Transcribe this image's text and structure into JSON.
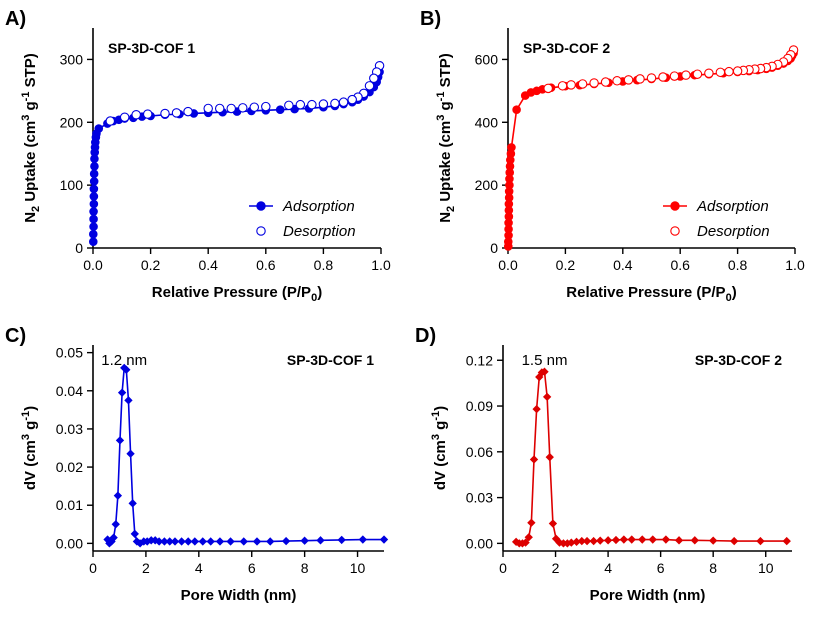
{
  "chart_data": [
    {
      "panel": "A)",
      "type": "scatter",
      "title": "SP-3D-COF 1",
      "color": "#0000e0",
      "xlabel": "Relative Pressure (P/P0)",
      "ylabel": "N2 Uptake (cm3 g-1 STP)",
      "xlim": [
        0,
        1.0
      ],
      "ylim": [
        0,
        350
      ],
      "xticks": [
        0.0,
        0.2,
        0.4,
        0.6,
        0.8,
        1.0
      ],
      "xtick_labels": [
        "0.0",
        "0.2",
        "0.4",
        "0.6",
        "0.8",
        "1.0"
      ],
      "yticks": [
        0,
        100,
        200,
        300
      ],
      "ytick_labels": [
        "0",
        "100",
        "200",
        "300"
      ],
      "legend_position": "bottom-right",
      "series": [
        {
          "name": "Adsorption",
          "marker": "filled-circle",
          "line": true,
          "x": [
            0.001,
            0.001,
            0.002,
            0.002,
            0.002,
            0.003,
            0.003,
            0.003,
            0.004,
            0.004,
            0.005,
            0.005,
            0.006,
            0.007,
            0.008,
            0.01,
            0.012,
            0.02,
            0.05,
            0.07,
            0.09,
            0.11,
            0.14,
            0.17,
            0.2,
            0.25,
            0.3,
            0.35,
            0.4,
            0.45,
            0.5,
            0.55,
            0.6,
            0.65,
            0.7,
            0.75,
            0.8,
            0.84,
            0.87,
            0.9,
            0.92,
            0.94,
            0.96,
            0.975,
            0.985,
            0.99,
            0.995
          ],
          "y": [
            10,
            22,
            34,
            46,
            58,
            70,
            82,
            94,
            106,
            118,
            130,
            142,
            152,
            160,
            168,
            176,
            182,
            190,
            198,
            202,
            204,
            206,
            207,
            209,
            210,
            212,
            213,
            214,
            215,
            216,
            217,
            218,
            219,
            220,
            221,
            222,
            224,
            226,
            229,
            232,
            236,
            241,
            248,
            256,
            264,
            272,
            280
          ]
        },
        {
          "name": "Desorption",
          "marker": "open-circle",
          "line": false,
          "x": [
            0.995,
            0.985,
            0.975,
            0.96,
            0.94,
            0.92,
            0.9,
            0.87,
            0.84,
            0.8,
            0.76,
            0.72,
            0.68,
            0.6,
            0.56,
            0.52,
            0.48,
            0.44,
            0.4,
            0.33,
            0.29,
            0.25,
            0.19,
            0.15,
            0.11,
            0.06
          ],
          "y": [
            290,
            280,
            270,
            258,
            246,
            240,
            236,
            232,
            230,
            229,
            228,
            228,
            227,
            225,
            224,
            223,
            222,
            222,
            222,
            217,
            215,
            214,
            213,
            212,
            208,
            202
          ]
        }
      ]
    },
    {
      "panel": "B)",
      "type": "scatter",
      "title": "SP-3D-COF 2",
      "color": "#ff0000",
      "xlabel": "Relative Pressure (P/P0)",
      "ylabel": "N2 Uptake (cm3 g-1 STP)",
      "xlim": [
        0,
        1.0
      ],
      "ylim": [
        0,
        700
      ],
      "xticks": [
        0.0,
        0.2,
        0.4,
        0.6,
        0.8,
        1.0
      ],
      "xtick_labels": [
        "0.0",
        "0.2",
        "0.4",
        "0.6",
        "0.8",
        "1.0"
      ],
      "yticks": [
        0,
        200,
        400,
        600
      ],
      "ytick_labels": [
        "0",
        "200",
        "400",
        "600"
      ],
      "legend_position": "bottom-right",
      "series": [
        {
          "name": "Adsorption",
          "marker": "filled-circle",
          "line": true,
          "x": [
            0.001,
            0.001,
            0.002,
            0.002,
            0.002,
            0.003,
            0.003,
            0.003,
            0.004,
            0.004,
            0.005,
            0.005,
            0.006,
            0.007,
            0.008,
            0.01,
            0.012,
            0.03,
            0.06,
            0.08,
            0.1,
            0.12,
            0.15,
            0.2,
            0.25,
            0.3,
            0.35,
            0.4,
            0.45,
            0.5,
            0.55,
            0.6,
            0.65,
            0.7,
            0.75,
            0.8,
            0.84,
            0.87,
            0.9,
            0.92,
            0.94,
            0.96,
            0.975,
            0.985,
            0.99,
            0.995
          ],
          "y": [
            5,
            20,
            40,
            60,
            80,
            100,
            120,
            140,
            160,
            180,
            200,
            220,
            240,
            260,
            280,
            300,
            320,
            440,
            485,
            495,
            500,
            505,
            510,
            515,
            518,
            522,
            526,
            530,
            534,
            538,
            542,
            546,
            550,
            553,
            556,
            560,
            563,
            566,
            570,
            574,
            580,
            587,
            595,
            603,
            612,
            620
          ]
        },
        {
          "name": "Desorption",
          "marker": "open-circle",
          "line": false,
          "x": [
            0.995,
            0.985,
            0.975,
            0.96,
            0.94,
            0.92,
            0.9,
            0.88,
            0.86,
            0.84,
            0.82,
            0.8,
            0.77,
            0.74,
            0.7,
            0.66,
            0.62,
            0.58,
            0.54,
            0.5,
            0.46,
            0.42,
            0.38,
            0.34,
            0.3,
            0.26,
            0.22,
            0.19,
            0.14
          ],
          "y": [
            630,
            615,
            603,
            592,
            584,
            578,
            574,
            571,
            569,
            567,
            565,
            563,
            561,
            559,
            556,
            553,
            550,
            547,
            544,
            541,
            538,
            535,
            532,
            528,
            525,
            522,
            519,
            516,
            508
          ]
        }
      ]
    },
    {
      "panel": "C)",
      "type": "line",
      "title": "SP-3D-COF 1",
      "annotation": "1.2 nm",
      "color": "#0000e0",
      "xlabel": "Pore Width (nm)",
      "ylabel": "dV (cm3 g-1)",
      "xlim": [
        0,
        11
      ],
      "ylim": [
        -0.002,
        0.052
      ],
      "xticks": [
        0,
        2,
        4,
        6,
        8,
        10
      ],
      "xtick_labels": [
        "0",
        "2",
        "4",
        "6",
        "8",
        "10"
      ],
      "yticks": [
        0.0,
        0.01,
        0.02,
        0.03,
        0.04,
        0.05
      ],
      "ytick_labels": [
        "0.00",
        "0.01",
        "0.02",
        "0.03",
        "0.04",
        "0.05"
      ],
      "series": [
        {
          "name": "SP-3D-COF 1",
          "marker": "diamond",
          "x": [
            0.55,
            0.62,
            0.7,
            0.78,
            0.86,
            0.94,
            1.02,
            1.1,
            1.18,
            1.26,
            1.34,
            1.42,
            1.5,
            1.58,
            1.66,
            1.78,
            1.92,
            2.05,
            2.2,
            2.35,
            2.5,
            2.7,
            2.9,
            3.1,
            3.35,
            3.6,
            3.85,
            4.15,
            4.45,
            4.8,
            5.2,
            5.7,
            6.2,
            6.7,
            7.3,
            8.0,
            8.6,
            9.4,
            10.2,
            11.0
          ],
          "y": [
            0.001,
            0.0,
            0.0005,
            0.0015,
            0.005,
            0.0125,
            0.027,
            0.0395,
            0.046,
            0.0455,
            0.0375,
            0.0235,
            0.0105,
            0.0025,
            0.0005,
            0.0,
            0.0005,
            0.0005,
            0.0008,
            0.0008,
            0.0005,
            0.0005,
            0.0005,
            0.0005,
            0.0005,
            0.0005,
            0.0005,
            0.0005,
            0.0005,
            0.0005,
            0.0005,
            0.0005,
            0.0005,
            0.0005,
            0.0006,
            0.0007,
            0.0008,
            0.0009,
            0.001,
            0.001
          ]
        }
      ]
    },
    {
      "panel": "D)",
      "type": "line",
      "title": "SP-3D-COF 2",
      "annotation": "1.5 nm",
      "color": "#dd0000",
      "xlabel": "Pore Width (nm)",
      "ylabel": "dV (cm3 g-1)",
      "xlim": [
        0,
        11
      ],
      "ylim": [
        -0.005,
        0.13
      ],
      "xticks": [
        0,
        2,
        4,
        6,
        8,
        10
      ],
      "xtick_labels": [
        "0",
        "2",
        "4",
        "6",
        "8",
        "10"
      ],
      "yticks": [
        0.0,
        0.03,
        0.06,
        0.09,
        0.12
      ],
      "ytick_labels": [
        "0.00",
        "0.03",
        "0.06",
        "0.09",
        "0.12"
      ],
      "series": [
        {
          "name": "SP-3D-COF 2",
          "marker": "diamond",
          "x": [
            0.5,
            0.62,
            0.74,
            0.86,
            0.98,
            1.08,
            1.18,
            1.28,
            1.38,
            1.48,
            1.58,
            1.68,
            1.78,
            1.9,
            2.02,
            2.15,
            2.3,
            2.45,
            2.6,
            2.8,
            3.0,
            3.2,
            3.45,
            3.7,
            4.0,
            4.3,
            4.6,
            4.9,
            5.3,
            5.7,
            6.2,
            6.7,
            7.3,
            8.0,
            8.8,
            9.8,
            10.8
          ],
          "y": [
            0.001,
            0.0,
            0.0,
            0.0005,
            0.004,
            0.0135,
            0.055,
            0.088,
            0.109,
            0.112,
            0.1125,
            0.096,
            0.0565,
            0.013,
            0.003,
            0.0005,
            0.0,
            0.0,
            0.0005,
            0.001,
            0.0015,
            0.0015,
            0.0015,
            0.0018,
            0.002,
            0.0022,
            0.0025,
            0.0025,
            0.0025,
            0.0025,
            0.0025,
            0.002,
            0.002,
            0.0018,
            0.0015,
            0.0015,
            0.0015
          ]
        }
      ]
    }
  ]
}
